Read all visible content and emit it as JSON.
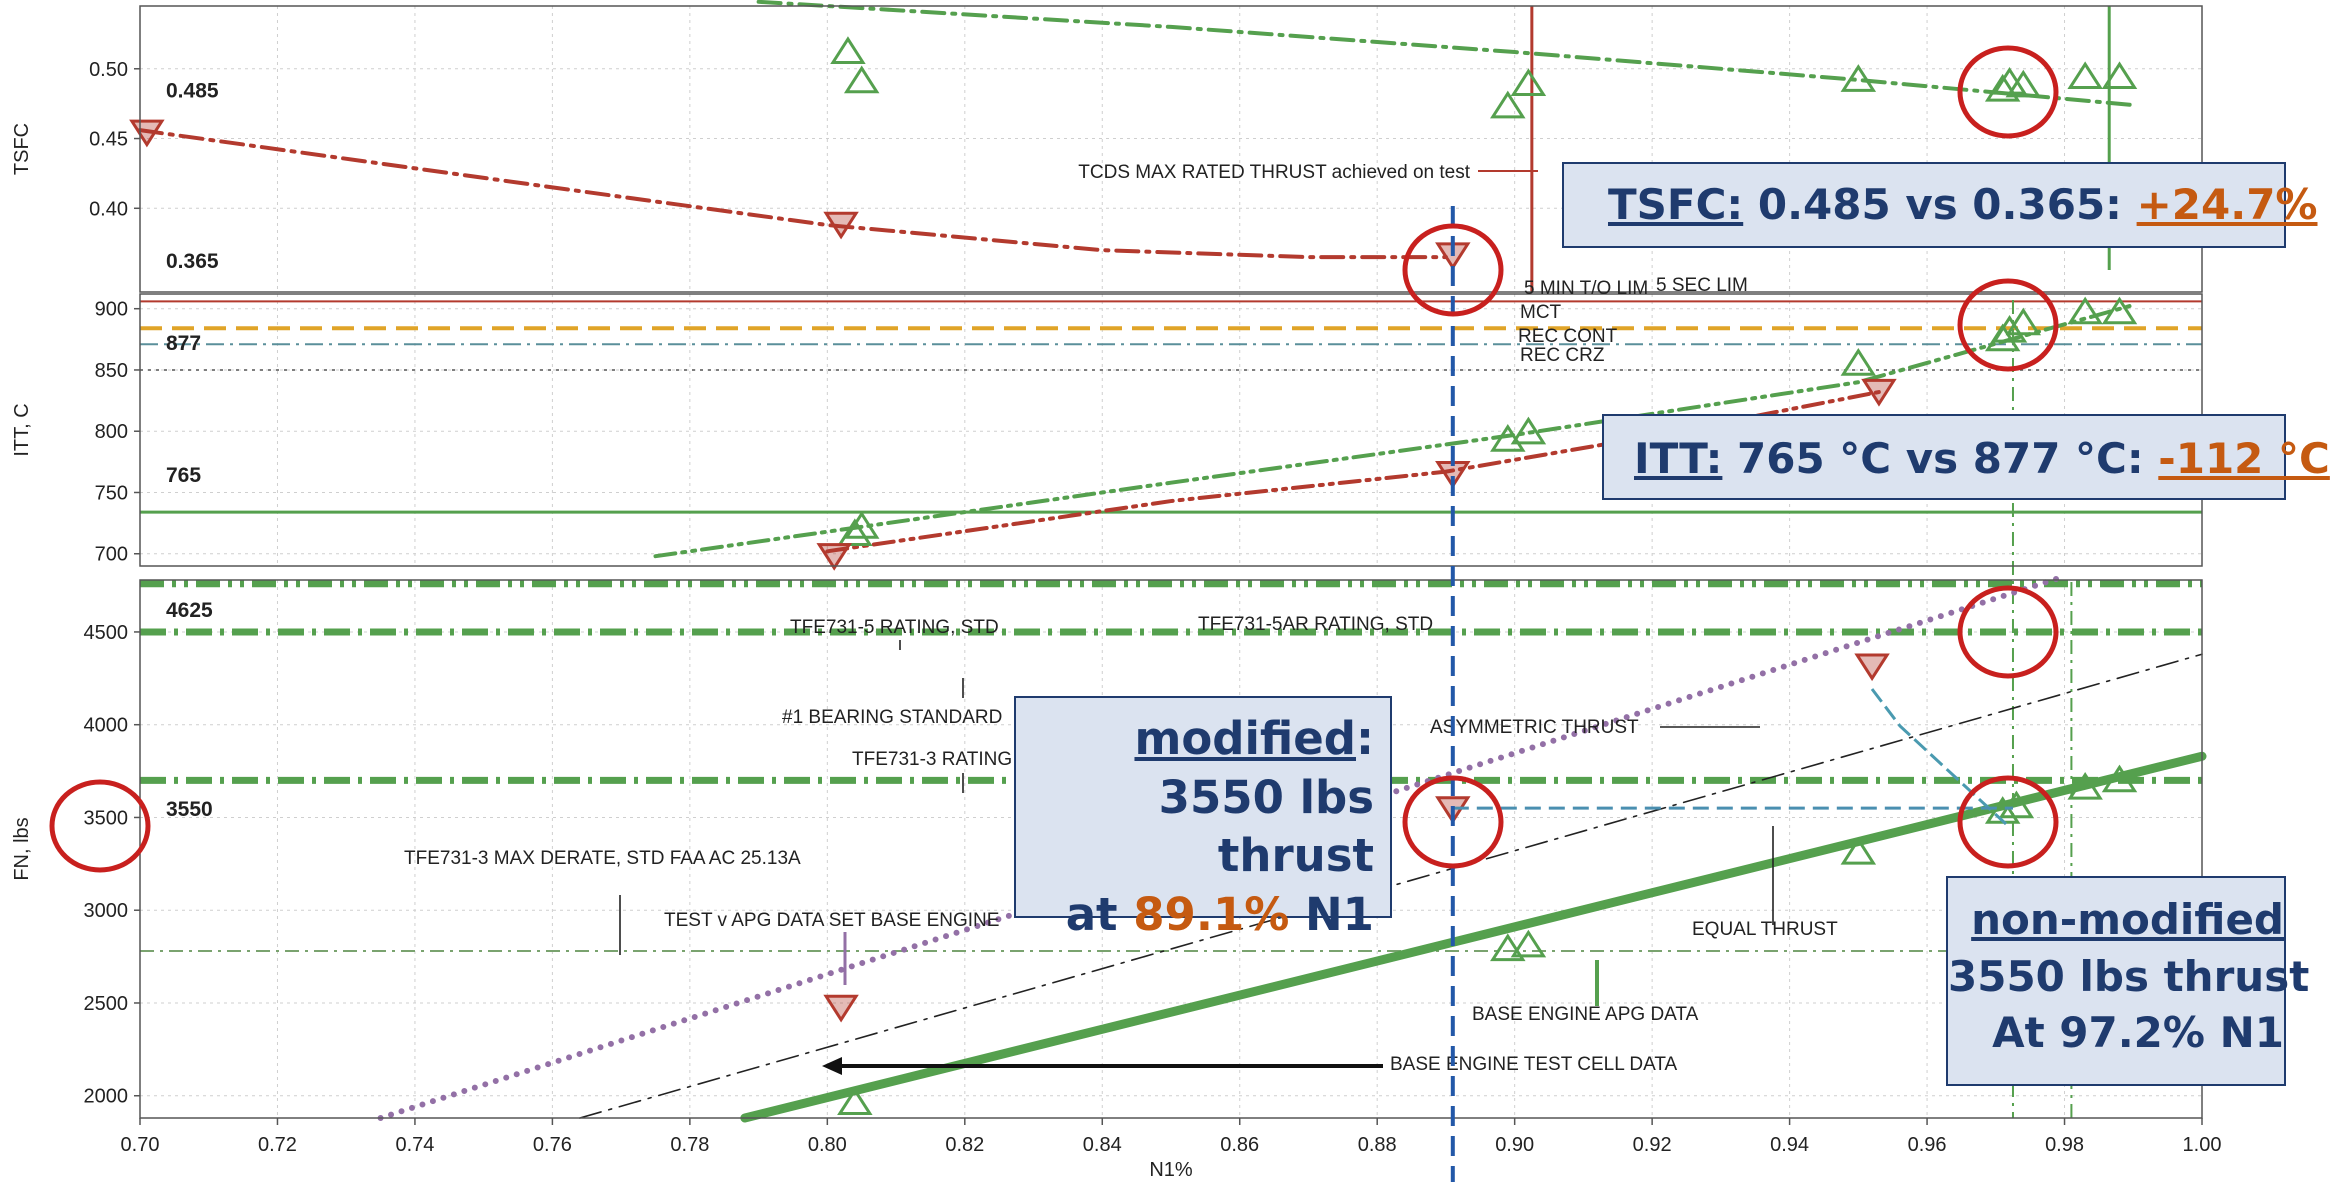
{
  "chart_data": {
    "type": "line",
    "xlabel": "N1%",
    "x_ticks": [
      "0.70",
      "0.72",
      "0.74",
      "0.76",
      "0.78",
      "0.80",
      "0.82",
      "0.84",
      "0.86",
      "0.88",
      "0.90",
      "0.92",
      "0.94",
      "0.96",
      "0.98",
      "1.00"
    ],
    "xlim": [
      0.7,
      1.0
    ],
    "panels": [
      {
        "id": "tsfc",
        "ylabel": "TSFC",
        "y_ticks": [
          "0.50",
          "0.45",
          "0.40"
        ],
        "ylim": [
          0.34,
          0.545
        ],
        "value_labels": [
          "0.485",
          "0.365"
        ],
        "series": [
          {
            "color": "#55a04e",
            "style": "dashdot",
            "x": [
              0.79,
              0.85,
              0.9,
              0.95,
              0.99
            ],
            "y": [
              0.548,
              0.53,
              0.512,
              0.492,
              0.474
            ]
          },
          {
            "color": "#b33a2e",
            "style": "dashdot",
            "x": [
              0.7,
              0.76,
              0.8,
              0.84,
              0.87,
              0.89
            ],
            "y": [
              0.456,
              0.415,
              0.388,
              0.37,
              0.365,
              0.365
            ]
          }
        ],
        "markers_up": {
          "x": [
            0.803,
            0.805,
            0.899,
            0.902,
            0.95,
            0.971,
            0.972,
            0.974,
            0.983,
            0.988
          ],
          "y": [
            0.512,
            0.491,
            0.473,
            0.489,
            0.492,
            0.485,
            0.49,
            0.488,
            0.494,
            0.494
          ]
        },
        "markers_down": {
          "x": [
            0.701,
            0.802,
            0.891
          ],
          "y": [
            0.455,
            0.389,
            0.367
          ]
        },
        "annotations": [
          "TCDS MAX RATED THRUST achieved on test"
        ]
      },
      {
        "id": "itt",
        "ylabel": "ITT, C",
        "y_ticks": [
          "900",
          "850",
          "800",
          "750",
          "700"
        ],
        "ylim": [
          690,
          912
        ],
        "value_labels": [
          "877",
          "765"
        ],
        "limit_labels": [
          "5 MIN T/O LIM",
          "5 SEC LIM",
          "MCT",
          "REC CONT",
          "REC CRZ"
        ],
        "series": [
          {
            "color": "#55a04e",
            "style": "dashdotdot",
            "x": [
              0.775,
              0.85,
              0.9,
              0.95,
              0.99
            ],
            "y": [
              698,
              758,
              797,
              840,
              903
            ]
          },
          {
            "color": "#b33a2e",
            "style": "dashdotdot",
            "x": [
              0.8,
              0.85,
              0.89,
              0.92,
              0.953
            ],
            "y": [
              702,
              743,
              767,
              796,
              832
            ]
          }
        ],
        "markers_up": {
          "x": [
            0.804,
            0.805,
            0.899,
            0.902,
            0.95,
            0.971,
            0.972,
            0.974,
            0.983,
            0.988
          ],
          "y": [
            716,
            722,
            793,
            799,
            855,
            875,
            882,
            888,
            897,
            897
          ]
        },
        "markers_down": {
          "x": [
            0.801,
            0.891,
            0.953
          ],
          "y": [
            699,
            766,
            833
          ]
        }
      },
      {
        "id": "fn",
        "ylabel": "FN, lbs",
        "y_ticks": [
          "4500",
          "4000",
          "3500",
          "3000",
          "2500",
          "2000"
        ],
        "ylim": [
          1880,
          4780
        ],
        "value_labels": [
          "4625",
          "3550"
        ],
        "annotations": [
          "TFE731-5 RATING, STD",
          "TFE731-5AR RATING, STD",
          "#1 BEARING STANDARD",
          "TFE731-3 RATING",
          "TFE731-3 MAX DERATE, STD FAA AC 25.13A",
          "TEST v APG DATA SET BASE ENGINE",
          "ASYMMETRIC THRUST",
          "EQUAL THRUST",
          "BASE ENGINE APG DATA",
          "BASE ENGINE TEST CELL DATA"
        ],
        "series": [
          {
            "color": "#55a04e",
            "style": "solid",
            "x": [
              0.788,
              1.0
            ],
            "y": [
              1880,
              3830
            ]
          },
          {
            "color": "#9370a6",
            "style": "dotted",
            "x": [
              0.735,
              0.98
            ],
            "y": [
              1880,
              4800
            ]
          },
          {
            "color": "#222222",
            "style": "dashdot",
            "x": [
              0.764,
              1.0
            ],
            "y": [
              1880,
              4380
            ]
          }
        ],
        "markers_up": {
          "x": [
            0.804,
            0.899,
            0.902,
            0.95,
            0.971,
            0.973,
            0.983,
            0.988
          ],
          "y": [
            1960,
            2790,
            2810,
            3310,
            3530,
            3560,
            3660,
            3700
          ]
        },
        "markers_down": {
          "x": [
            0.802,
            0.891,
            0.952
          ],
          "y": [
            2480,
            3550,
            4320
          ]
        }
      }
    ]
  },
  "callouts": {
    "tsfc": {
      "label": "TSFC:",
      "text": " 0.485 vs 0.365: ",
      "value": "+24.7%"
    },
    "itt": {
      "label": "ITT:",
      "text": " 765 °C vs 877 °C: ",
      "value": "-112 °C"
    },
    "modified": {
      "line1": "modified",
      "colon": ":",
      "line2": "3550 lbs thrust",
      "line3a": "at ",
      "line3b": "89.1%",
      "line3c": " N1"
    },
    "non_modified": {
      "line1": "non-modified",
      "line2": "3550 lbs thrust",
      "line3": "At 97.2% N1"
    }
  }
}
